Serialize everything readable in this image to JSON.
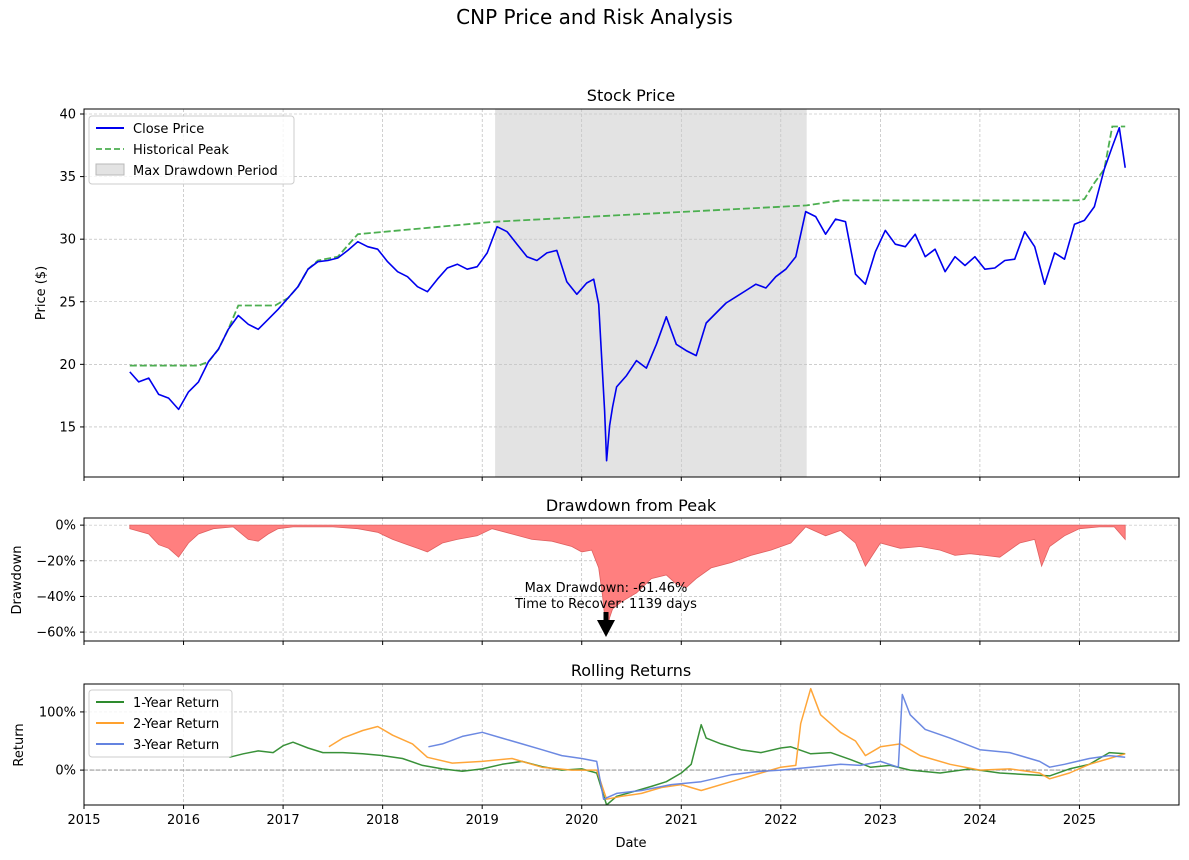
{
  "figure": {
    "title": "CNP Price and Risk Analysis"
  },
  "colors": {
    "close": "#0000ee",
    "peak": "#4caf50",
    "shade": "#c8c8c8",
    "drawdown": "#ff7f7f",
    "drawdown_edge": "#e06060",
    "r1": "#2e8b2e",
    "r2": "#ffa12e",
    "r3": "#6483e0",
    "grid": "#b0b0b0"
  },
  "chart_data": [
    {
      "type": "line",
      "title": "Stock Price",
      "ylabel": "Price ($)",
      "xlim": [
        2015.0,
        2026.0
      ],
      "ylim": [
        11,
        40.4
      ],
      "yticks": [
        15,
        20,
        25,
        30,
        35,
        40
      ],
      "grid": true,
      "legend_position": "upper left",
      "legend": [
        "Close Price",
        "Historical Peak",
        "Max Drawdown Period"
      ],
      "shaded_span": {
        "name": "Max Drawdown Period",
        "x": [
          2019.13,
          2022.26
        ]
      },
      "series": [
        {
          "name": "Close Price",
          "style": "solid",
          "x": [
            2015.46,
            2015.55,
            2015.65,
            2015.75,
            2015.85,
            2015.95,
            2016.05,
            2016.15,
            2016.25,
            2016.35,
            2016.45,
            2016.55,
            2016.65,
            2016.75,
            2016.85,
            2016.95,
            2017.05,
            2017.15,
            2017.25,
            2017.35,
            2017.45,
            2017.55,
            2017.65,
            2017.75,
            2017.85,
            2017.95,
            2018.05,
            2018.15,
            2018.25,
            2018.35,
            2018.45,
            2018.55,
            2018.65,
            2018.75,
            2018.85,
            2018.95,
            2019.05,
            2019.15,
            2019.25,
            2019.35,
            2019.45,
            2019.55,
            2019.65,
            2019.75,
            2019.85,
            2019.95,
            2020.05,
            2020.12,
            2020.17,
            2020.2,
            2020.23,
            2020.25,
            2020.28,
            2020.31,
            2020.35,
            2020.45,
            2020.55,
            2020.65,
            2020.75,
            2020.85,
            2020.95,
            2021.05,
            2021.15,
            2021.25,
            2021.35,
            2021.45,
            2021.55,
            2021.65,
            2021.75,
            2021.85,
            2021.95,
            2022.05,
            2022.15,
            2022.25,
            2022.35,
            2022.45,
            2022.55,
            2022.65,
            2022.75,
            2022.85,
            2022.95,
            2023.05,
            2023.15,
            2023.25,
            2023.35,
            2023.45,
            2023.55,
            2023.65,
            2023.75,
            2023.85,
            2023.95,
            2024.05,
            2024.15,
            2024.25,
            2024.35,
            2024.45,
            2024.55,
            2024.65,
            2024.75,
            2024.85,
            2024.95,
            2025.05,
            2025.15,
            2025.25,
            2025.33,
            2025.4,
            2025.46
          ],
          "y": [
            19.4,
            18.6,
            18.9,
            17.6,
            17.3,
            16.4,
            17.8,
            18.6,
            20.2,
            21.2,
            22.8,
            23.9,
            23.2,
            22.8,
            23.6,
            24.4,
            25.3,
            26.2,
            27.6,
            28.2,
            28.3,
            28.5,
            29.1,
            29.8,
            29.4,
            29.2,
            28.2,
            27.4,
            27.0,
            26.2,
            25.8,
            26.8,
            27.7,
            28.0,
            27.6,
            27.8,
            28.9,
            31.0,
            30.6,
            29.6,
            28.6,
            28.3,
            28.9,
            29.1,
            26.6,
            25.6,
            26.5,
            26.8,
            24.8,
            20.6,
            16.3,
            12.3,
            15.1,
            16.6,
            18.2,
            19.1,
            20.3,
            19.7,
            21.6,
            23.8,
            21.6,
            21.1,
            20.7,
            23.3,
            24.1,
            24.9,
            25.4,
            25.9,
            26.4,
            26.1,
            27.0,
            27.6,
            28.6,
            32.2,
            31.8,
            30.4,
            31.6,
            31.4,
            27.2,
            26.4,
            29.0,
            30.7,
            29.6,
            29.4,
            30.4,
            28.6,
            29.2,
            27.4,
            28.6,
            27.9,
            28.6,
            27.6,
            27.7,
            28.3,
            28.4,
            30.6,
            29.4,
            26.4,
            28.9,
            28.4,
            31.2,
            31.5,
            32.6,
            35.6,
            37.4,
            38.9,
            35.7
          ]
        },
        {
          "name": "Historical Peak",
          "style": "dashed",
          "x": [
            2015.46,
            2015.95,
            2016.15,
            2016.25,
            2016.35,
            2016.45,
            2016.55,
            2016.92,
            2017.05,
            2017.15,
            2017.25,
            2017.35,
            2017.55,
            2017.75,
            2019.13,
            2022.26,
            2022.6,
            2024.98,
            2025.05,
            2025.15,
            2025.25,
            2025.33,
            2025.46
          ],
          "y": [
            19.9,
            19.9,
            19.9,
            20.2,
            21.2,
            22.8,
            24.7,
            24.7,
            25.3,
            26.2,
            27.6,
            28.3,
            28.6,
            30.4,
            31.4,
            32.7,
            33.1,
            33.1,
            33.2,
            34.5,
            35.6,
            39.0,
            39.0
          ]
        }
      ]
    },
    {
      "type": "area",
      "title": "Drawdown from Peak",
      "ylabel": "Drawdown",
      "xlim": [
        2015.0,
        2026.0
      ],
      "ylim": [
        -65,
        4
      ],
      "yticks": [
        0,
        -20,
        -40,
        -60
      ],
      "ytick_labels": [
        "0%",
        "−20%",
        "−40%",
        "−60%"
      ],
      "grid": true,
      "series": [
        {
          "name": "Drawdown",
          "x": [
            2015.46,
            2015.65,
            2015.75,
            2015.85,
            2015.95,
            2016.05,
            2016.15,
            2016.3,
            2016.5,
            2016.65,
            2016.75,
            2016.85,
            2016.95,
            2017.1,
            2017.3,
            2017.5,
            2017.75,
            2017.95,
            2018.1,
            2018.25,
            2018.35,
            2018.45,
            2018.6,
            2018.75,
            2018.95,
            2019.1,
            2019.3,
            2019.5,
            2019.7,
            2019.9,
            2020.0,
            2020.1,
            2020.17,
            2020.21,
            2020.25,
            2020.28,
            2020.31,
            2020.4,
            2020.55,
            2020.7,
            2020.85,
            2020.95,
            2021.05,
            2021.15,
            2021.3,
            2021.5,
            2021.7,
            2021.9,
            2022.1,
            2022.25,
            2022.45,
            2022.6,
            2022.75,
            2022.85,
            2023.0,
            2023.2,
            2023.4,
            2023.6,
            2023.75,
            2023.9,
            2024.05,
            2024.2,
            2024.4,
            2024.55,
            2024.62,
            2024.7,
            2024.85,
            2025.0,
            2025.2,
            2025.35,
            2025.46
          ],
          "y": [
            -2,
            -5,
            -11,
            -13,
            -18,
            -10,
            -5,
            -2,
            -1,
            -8,
            -9,
            -5,
            -2,
            -1,
            -1,
            -1,
            -2,
            -4,
            -8,
            -11,
            -13,
            -15,
            -10,
            -8,
            -6,
            -2,
            -5,
            -8,
            -9,
            -12,
            -15,
            -14,
            -24,
            -40,
            -61.5,
            -52,
            -47,
            -43,
            -38,
            -30,
            -28,
            -33,
            -35,
            -30,
            -24,
            -21,
            -17,
            -14,
            -10,
            -1,
            -6,
            -3,
            -10,
            -23,
            -10,
            -13,
            -12,
            -14,
            -17,
            -16,
            -17,
            -18,
            -10,
            -8,
            -23,
            -12,
            -6,
            -2,
            -1,
            -1,
            -8
          ]
        }
      ],
      "annotation": {
        "line1": "Max Drawdown: -61.46%",
        "line2": "Time to Recover: 1139 days",
        "x": 2020.25,
        "y": -61.46
      }
    },
    {
      "type": "line",
      "title": "Rolling Returns",
      "ylabel": "Return",
      "xlabel": "Date",
      "xlim": [
        2015.0,
        2026.0
      ],
      "ylim": [
        -60,
        148
      ],
      "yticks": [
        0,
        100
      ],
      "ytick_labels": [
        "0%",
        "100%"
      ],
      "xticks": [
        2015,
        2016,
        2017,
        2018,
        2019,
        2020,
        2021,
        2022,
        2023,
        2024,
        2025
      ],
      "xtick_labels": [
        "2015",
        "2016",
        "2017",
        "2018",
        "2019",
        "2020",
        "2021",
        "2022",
        "2023",
        "2024",
        "2025"
      ],
      "grid": true,
      "legend_position": "upper left",
      "legend": [
        "1-Year Return",
        "2-Year Return",
        "3-Year Return"
      ],
      "series": [
        {
          "name": "1-Year Return",
          "x": [
            2016.46,
            2016.6,
            2016.75,
            2016.9,
            2017.0,
            2017.1,
            2017.25,
            2017.4,
            2017.6,
            2017.8,
            2018.0,
            2018.2,
            2018.4,
            2018.6,
            2018.8,
            2019.0,
            2019.2,
            2019.4,
            2019.6,
            2019.8,
            2020.0,
            2020.15,
            2020.25,
            2020.35,
            2020.5,
            2020.7,
            2020.85,
            2021.0,
            2021.1,
            2021.2,
            2021.25,
            2021.4,
            2021.6,
            2021.8,
            2022.0,
            2022.1,
            2022.3,
            2022.5,
            2022.7,
            2022.9,
            2023.1,
            2023.3,
            2023.6,
            2023.9,
            2024.2,
            2024.5,
            2024.7,
            2024.9,
            2025.1,
            2025.3,
            2025.46
          ],
          "y": [
            22,
            28,
            33,
            30,
            42,
            48,
            38,
            30,
            30,
            28,
            25,
            20,
            8,
            2,
            -2,
            2,
            10,
            15,
            6,
            0,
            2,
            -5,
            -60,
            -45,
            -38,
            -28,
            -20,
            -5,
            10,
            78,
            55,
            45,
            35,
            30,
            38,
            40,
            28,
            30,
            18,
            5,
            8,
            0,
            -5,
            2,
            -5,
            -8,
            -10,
            2,
            10,
            30,
            28
          ]
        },
        {
          "name": "2-Year Return",
          "x": [
            2017.46,
            2017.6,
            2017.8,
            2017.95,
            2018.1,
            2018.3,
            2018.45,
            2018.7,
            2019.0,
            2019.3,
            2019.6,
            2019.9,
            2020.15,
            2020.25,
            2020.4,
            2020.6,
            2020.8,
            2021.0,
            2021.2,
            2021.5,
            2021.8,
            2022.0,
            2022.15,
            2022.2,
            2022.3,
            2022.4,
            2022.6,
            2022.75,
            2022.85,
            2023.0,
            2023.2,
            2023.4,
            2023.7,
            2024.0,
            2024.3,
            2024.6,
            2024.7,
            2024.9,
            2025.1,
            2025.3,
            2025.46
          ],
          "y": [
            40,
            55,
            68,
            75,
            60,
            45,
            22,
            12,
            15,
            20,
            5,
            0,
            0,
            -50,
            -45,
            -40,
            -30,
            -25,
            -35,
            -20,
            -5,
            5,
            8,
            80,
            140,
            95,
            65,
            50,
            25,
            40,
            45,
            25,
            10,
            0,
            2,
            -5,
            -15,
            -5,
            10,
            20,
            28
          ]
        },
        {
          "name": "3-Year Return",
          "x": [
            2018.46,
            2018.6,
            2018.8,
            2019.0,
            2019.2,
            2019.4,
            2019.6,
            2019.8,
            2020.0,
            2020.15,
            2020.22,
            2020.35,
            2020.6,
            2020.9,
            2021.2,
            2021.5,
            2021.8,
            2022.0,
            2022.3,
            2022.6,
            2022.8,
            2023.0,
            2023.18,
            2023.22,
            2023.3,
            2023.45,
            2023.7,
            2024.0,
            2024.3,
            2024.6,
            2024.7,
            2024.85,
            2025.1,
            2025.3,
            2025.46
          ],
          "y": [
            40,
            45,
            58,
            65,
            55,
            45,
            35,
            25,
            20,
            15,
            -50,
            -40,
            -35,
            -25,
            -20,
            -8,
            -2,
            0,
            5,
            10,
            8,
            15,
            5,
            130,
            95,
            70,
            55,
            35,
            30,
            15,
            5,
            10,
            20,
            25,
            22
          ]
        }
      ]
    }
  ]
}
